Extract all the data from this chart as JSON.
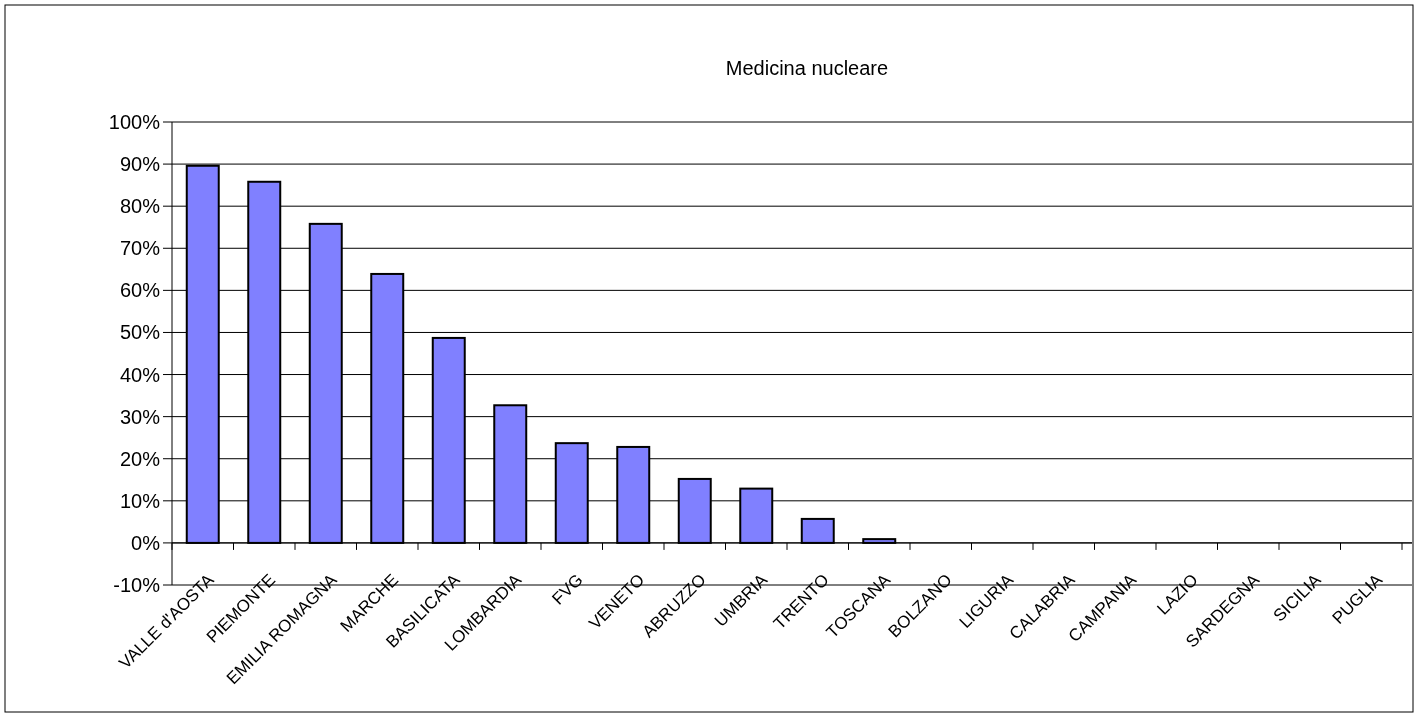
{
  "chart_data": {
    "type": "bar",
    "title": "Medicina nucleare",
    "categories": [
      "VALLE d'AOSTA",
      "PIEMONTE",
      "EMILIA ROMAGNA",
      "MARCHE",
      "BASILICATA",
      "LOMBARDIA",
      "FVG",
      "VENETO",
      "ABRUZZO",
      "UMBRIA",
      "TRENTO",
      "TOSCANA",
      "BOLZANO",
      "LIGURIA",
      "CALABRIA",
      "CAMPANIA",
      "LAZIO",
      "SARDEGNA",
      "SICILIA",
      "PUGLIA"
    ],
    "values": [
      89.6,
      85.8,
      75.8,
      63.9,
      48.7,
      32.7,
      23.7,
      22.8,
      15.2,
      12.9,
      5.7,
      0.9,
      0,
      0,
      0,
      0,
      0,
      0,
      0,
      0
    ],
    "color": "#8080ff",
    "ylim": [
      -10,
      100
    ],
    "yticks": [
      {
        "value": -10,
        "label": "-10%"
      },
      {
        "value": 0,
        "label": "0%"
      },
      {
        "value": 10,
        "label": "10%"
      },
      {
        "value": 20,
        "label": "20%"
      },
      {
        "value": 30,
        "label": "30%"
      },
      {
        "value": 40,
        "label": "40%"
      },
      {
        "value": 50,
        "label": "50%"
      },
      {
        "value": 60,
        "label": "60%"
      },
      {
        "value": 70,
        "label": "70%"
      },
      {
        "value": 80,
        "label": "80%"
      },
      {
        "value": 90,
        "label": "90%"
      },
      {
        "value": 100,
        "label": "100%"
      }
    ],
    "grid": "y"
  }
}
